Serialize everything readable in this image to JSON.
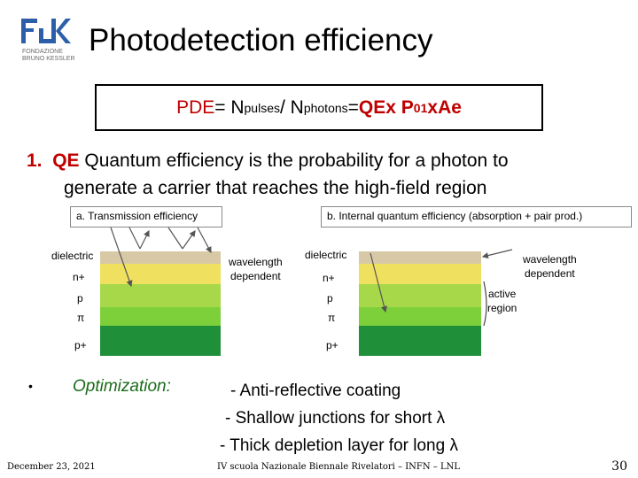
{
  "header": {
    "logo_text_1": "FONDAZIONE",
    "logo_text_2": "BRUNO KESSLER",
    "title": "Photodetection efficiency"
  },
  "formula": {
    "pde": "PDE",
    "eq1": " = N",
    "sub_pulses": "pulses",
    "slash": " / N",
    "sub_photons": "photons",
    "eq2": " = ",
    "qe": "QE",
    "x1": " x P",
    "sub_01": "01",
    "x2": " x ",
    "ae": "Ae"
  },
  "item1": {
    "number": "1.",
    "qe": "QE",
    "text_line1": " Quantum efficiency is the probability for a photon to",
    "text_line2": "generate a carrier that reaches the high-field region"
  },
  "diagram_a": {
    "label": "a. Transmission efficiency",
    "layers": [
      "dielectric",
      "n+",
      "p",
      "π",
      "p+"
    ],
    "note": "wavelength\ndependent"
  },
  "diagram_b": {
    "label": "b. Internal quantum efficiency (absorption + pair prod.)",
    "layers": [
      "dielectric",
      "n+",
      "p",
      "π",
      "p+"
    ],
    "note": "wavelength\ndependent",
    "region": "active\nregion"
  },
  "optimization": {
    "bullet": "•",
    "label": "Optimization:",
    "items": [
      "- Anti-reflective coating",
      "- Shallow junctions for short λ",
      "- Thick depletion layer for long λ"
    ]
  },
  "footer": {
    "date": "December 23, 2021",
    "school": "IV scuola Nazionale Biennale Rivelatori – INFN – LNL",
    "page": "30"
  },
  "colors": {
    "accent": "#c00000",
    "dielectric": "#d8c9a6",
    "n_plus": "#f0e060",
    "p": "#a6d84a",
    "pi": "#7ed03a",
    "p_plus": "#1f8f3a",
    "optimization": "#1a6b1a"
  }
}
